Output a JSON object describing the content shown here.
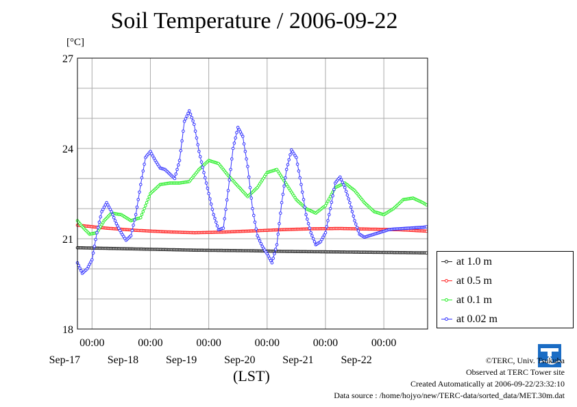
{
  "title": "Soil Temperature / 2006-09-22",
  "unit_label": "[°C]",
  "xlabel": "(LST)",
  "colors": {
    "series_1_0m": "#222222",
    "series_0_5m": "#ff2020",
    "series_0_1m": "#22ee22",
    "series_0_02m": "#3030ff",
    "grid": "#aaaaaa"
  },
  "credits": {
    "copyright": "©TERC, Univ. Tsukuba",
    "observed": "Observed at TERC Tower site",
    "created": "Created Automatically at 2006-09-22/23:32:10",
    "source": "Data source : /home/hojyo/new/TERC-data/sorted_data/MET.30m.dat"
  },
  "logo_text": "TERC",
  "chart_data": {
    "type": "line",
    "title": "Soil Temperature / 2006-09-22",
    "ylabel": "[°C]",
    "xlabel": "(LST)",
    "ylim": [
      18,
      27
    ],
    "xlim": [
      0,
      144
    ],
    "x_unit": "hours from 2006-09-16 18:00 LST",
    "yticks": [
      18,
      21,
      24,
      27
    ],
    "xticks": [
      {
        "x": 6,
        "time": "00:00",
        "date": "Sep-17"
      },
      {
        "x": 30,
        "time": "00:00",
        "date": "Sep-18"
      },
      {
        "x": 54,
        "time": "00:00",
        "date": "Sep-19"
      },
      {
        "x": 78,
        "time": "00:00",
        "date": "Sep-20"
      },
      {
        "x": 102,
        "time": "00:00",
        "date": "Sep-21"
      },
      {
        "x": 126,
        "time": "00:00",
        "date": "Sep-22"
      }
    ],
    "grid": true,
    "legend_position": "right-bottom",
    "series": [
      {
        "name": "at 1.0 m",
        "color": "#222222",
        "x": [
          0,
          12,
          24,
          36,
          48,
          60,
          72,
          84,
          96,
          108,
          120,
          132,
          144
        ],
        "y": [
          20.7,
          20.68,
          20.66,
          20.64,
          20.62,
          20.61,
          20.6,
          20.58,
          20.57,
          20.56,
          20.55,
          20.54,
          20.53
        ]
      },
      {
        "name": "at 0.5 m",
        "color": "#ff2020",
        "x": [
          0,
          12,
          24,
          36,
          48,
          60,
          72,
          84,
          96,
          108,
          120,
          132,
          144
        ],
        "y": [
          21.45,
          21.35,
          21.28,
          21.23,
          21.2,
          21.22,
          21.26,
          21.3,
          21.33,
          21.34,
          21.32,
          21.3,
          21.25
        ]
      },
      {
        "name": "at 0.1 m",
        "color": "#22ee22",
        "x": [
          0,
          2,
          5,
          8,
          11,
          14,
          18,
          22,
          26,
          30,
          34,
          38,
          42,
          46,
          50,
          54,
          58,
          62,
          66,
          70,
          74,
          78,
          82,
          86,
          90,
          94,
          98,
          102,
          106,
          110,
          114,
          118,
          122,
          126,
          130,
          134,
          138,
          142,
          144
        ],
        "y": [
          21.6,
          21.4,
          21.15,
          21.2,
          21.6,
          21.85,
          21.8,
          21.6,
          21.7,
          22.5,
          22.8,
          22.85,
          22.85,
          22.9,
          23.3,
          23.6,
          23.5,
          23.1,
          22.75,
          22.4,
          22.7,
          23.2,
          23.3,
          22.8,
          22.3,
          22.0,
          21.85,
          22.1,
          22.7,
          22.85,
          22.6,
          22.2,
          21.9,
          21.8,
          22.0,
          22.3,
          22.35,
          22.2,
          22.1
        ]
      },
      {
        "name": "at 0.02 m",
        "color": "#3030ff",
        "x": [
          0,
          2,
          4,
          6,
          8,
          10,
          12,
          14,
          16,
          18,
          20,
          22,
          24,
          26,
          28,
          30,
          32,
          34,
          36,
          38,
          40,
          42,
          44,
          46,
          48,
          50,
          52,
          54,
          56,
          58,
          60,
          62,
          64,
          66,
          68,
          70,
          72,
          74,
          76,
          78,
          80,
          82,
          84,
          86,
          88,
          90,
          92,
          94,
          96,
          98,
          100,
          102,
          104,
          106,
          108,
          110,
          112,
          114,
          116,
          118,
          120,
          122,
          124,
          126,
          128,
          130,
          132,
          134,
          136,
          138,
          140,
          142,
          144
        ],
        "y": [
          20.2,
          19.85,
          20.0,
          20.3,
          21.2,
          21.9,
          22.2,
          21.9,
          21.5,
          21.2,
          20.95,
          21.1,
          21.8,
          22.8,
          23.7,
          23.9,
          23.6,
          23.35,
          23.3,
          23.15,
          23.0,
          23.6,
          24.9,
          25.25,
          24.8,
          23.9,
          23.2,
          22.5,
          21.8,
          21.3,
          21.35,
          22.6,
          24.0,
          24.7,
          24.4,
          23.4,
          22.0,
          21.1,
          20.75,
          20.5,
          20.2,
          20.8,
          22.2,
          23.3,
          23.95,
          23.7,
          22.8,
          21.8,
          21.2,
          20.8,
          20.9,
          21.2,
          22.0,
          22.85,
          23.05,
          22.7,
          22.2,
          21.6,
          21.15,
          21.05,
          21.1,
          21.15,
          21.2,
          21.25,
          21.3,
          21.32,
          21.33,
          21.34,
          21.35,
          21.36,
          21.37,
          21.38,
          21.4
        ]
      }
    ]
  }
}
